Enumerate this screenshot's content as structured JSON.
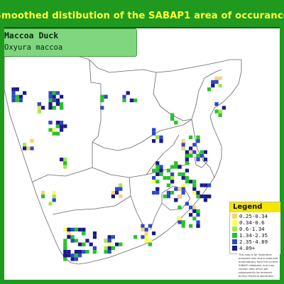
{
  "title": "Smoothed distibution of the SABAP1 area of occurance",
  "species": {
    "common_name": "Maccoa Duck",
    "scientific_name": "Oxyura maccoa"
  },
  "colors": {
    "frame": "#1f9a1f",
    "title_text": "#ffff33",
    "species_box": "#7fd67f",
    "legend_title_bg": "#f5e500",
    "border_lines": "#666666"
  },
  "legend": {
    "title": "Legend",
    "items": [
      {
        "label": "0.25-0.34",
        "color": "#f7d27a"
      },
      {
        "label": "0.34-0.6",
        "color": "#ffff55"
      },
      {
        "label": "0.6-1.34",
        "color": "#a6e84a"
      },
      {
        "label": "1.34-2.35",
        "color": "#29c229"
      },
      {
        "label": "2.35-4.89",
        "color": "#2d49c8"
      },
      {
        "label": "4.89+",
        "color": "#1a1a8c"
      }
    ]
  },
  "disclaimer": "This map is for illustrative purposes only and is produced automatically from the current SABAP1 database, and may contain data which will subsequently be removed during checking operations."
}
